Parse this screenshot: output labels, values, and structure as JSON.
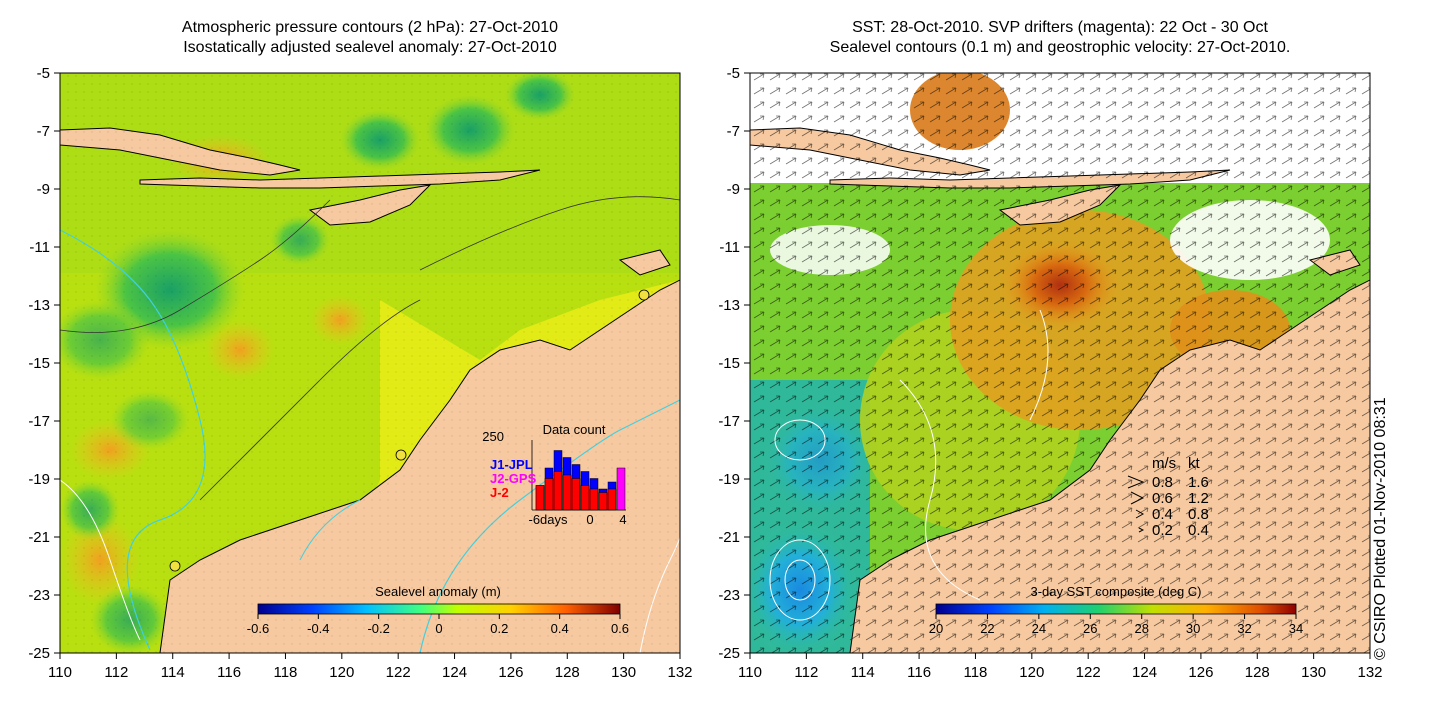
{
  "left_panel": {
    "title_line1": "Atmospheric pressure contours (2 hPa): 27-Oct-2010",
    "title_line2": "Isostatically adjusted sealevel anomaly: 27-Oct-2010",
    "x_ticks": [
      "110",
      "112",
      "114",
      "116",
      "118",
      "120",
      "122",
      "124",
      "126",
      "128",
      "130",
      "132"
    ],
    "y_ticks": [
      "-5",
      "-7",
      "-9",
      "-11",
      "-13",
      "-15",
      "-17",
      "-19",
      "-21",
      "-23",
      "-25"
    ],
    "colorbar": {
      "label": "Sealevel anomaly (m)",
      "ticks": [
        "-0.6",
        "-0.4",
        "-0.2",
        "0",
        "0.2",
        "0.4",
        "0.6"
      ]
    },
    "data_count": {
      "title": "Data count",
      "ymax_label": "250",
      "legend": [
        {
          "name": "J1-JPL",
          "color": "#0000ff"
        },
        {
          "name": "J2-GPS",
          "color": "#ff00ff"
        },
        {
          "name": "J-2",
          "color": "#ff0000"
        }
      ],
      "x_labels": [
        "-6days",
        "0",
        "4"
      ],
      "bars_j2": [
        0.35,
        0.45,
        0.55,
        0.5,
        0.45,
        0.35,
        0.3,
        0.25,
        0.3,
        0
      ],
      "bars_j1": [
        0.35,
        0.6,
        0.85,
        0.75,
        0.65,
        0.55,
        0.45,
        0.3,
        0.4,
        0
      ],
      "bars_gps": [
        0,
        0,
        0,
        0,
        0,
        0,
        0,
        0,
        0,
        0.6
      ]
    }
  },
  "right_panel": {
    "title_line1": "SST: 28-Oct-2010. SVP drifters (magenta): 22 Oct - 30 Oct",
    "title_line2": "Sealevel contours (0.1 m) and geostrophic velocity: 27-Oct-2010.",
    "x_ticks": [
      "110",
      "112",
      "114",
      "116",
      "118",
      "120",
      "122",
      "124",
      "126",
      "128",
      "130",
      "132"
    ],
    "y_ticks": [
      "-5",
      "-7",
      "-9",
      "-11",
      "-13",
      "-15",
      "-17",
      "-19",
      "-21",
      "-23",
      "-25"
    ],
    "colorbar": {
      "label": "3-day SST composite (deg C)",
      "ticks": [
        "20",
        "22",
        "24",
        "26",
        "28",
        "30",
        "32",
        "34"
      ]
    },
    "velocity_legend": {
      "header_ms": "m/s",
      "header_kt": "kt",
      "rows": [
        {
          "ms": "0.8",
          "kt": "1.6"
        },
        {
          "ms": "0.6",
          "kt": "1.2"
        },
        {
          "ms": "0.4",
          "kt": "0.8"
        },
        {
          "ms": "0.2",
          "kt": "0.4"
        }
      ]
    }
  },
  "credit": "© CSIRO Plotted 01-Nov-2010 08:31",
  "colors": {
    "land": "#f7c9a0",
    "coast": "#000000",
    "contour": "#40d0e0"
  }
}
